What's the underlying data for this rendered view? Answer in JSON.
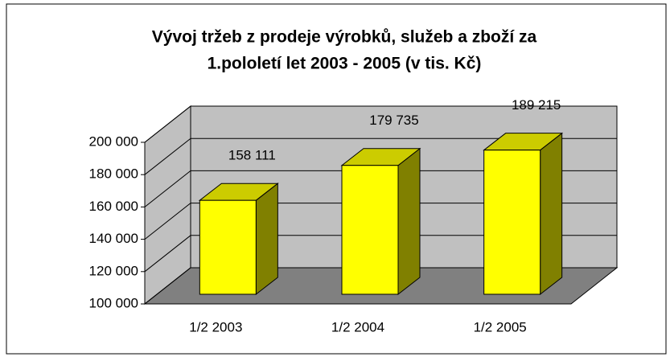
{
  "chart_data": {
    "type": "bar3d",
    "title": "Vývoj tržeb z prodeje výrobků, služeb a zboží za 1.pololetí let 2003 - 2005 (v tis. Kč)",
    "title_lines": [
      "Vývoj tržeb z prodeje výrobků, služeb a zboží za",
      "1.pololetí let 2003 - 2005 (v tis. Kč)"
    ],
    "categories": [
      "1/2 2003",
      "1/2 2004",
      "1/2 2005"
    ],
    "values": [
      158111,
      179735,
      189215
    ],
    "value_labels": [
      "158 111",
      "179 735",
      "189 215"
    ],
    "color": "#ffff00",
    "ylim": [
      100000,
      200000
    ],
    "yticks": [
      {
        "value": 100000,
        "label": "100 000"
      },
      {
        "value": 120000,
        "label": "120 000"
      },
      {
        "value": 140000,
        "label": "140 000"
      },
      {
        "value": 160000,
        "label": "160 000"
      },
      {
        "value": 180000,
        "label": "180 000"
      },
      {
        "value": 200000,
        "label": "200 000"
      }
    ],
    "grid": true
  }
}
